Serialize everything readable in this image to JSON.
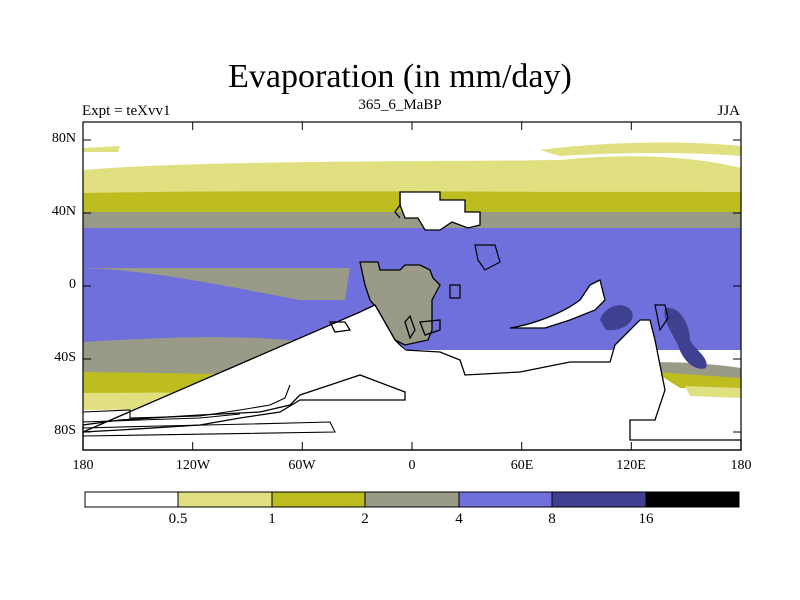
{
  "title": "Evaporation (in mm/day)",
  "subtitle_left": "Expt = teXvv1",
  "subtitle_center": "365_6_MaBP",
  "subtitle_right": "JJA",
  "lat_ticks": [
    "80N",
    "40N",
    "0",
    "40S",
    "80S"
  ],
  "lon_ticks": [
    "180",
    "120W",
    "60W",
    "0",
    "60E",
    "120E",
    "180"
  ],
  "colorbar": {
    "labels": [
      "0.5",
      "1",
      "2",
      "4",
      "8",
      "16"
    ],
    "colors": [
      "#ffffff",
      "#e0e080",
      "#bdbd20",
      "#9a9a88",
      "#7070dd",
      "#404090",
      "#000000"
    ]
  },
  "colors": {
    "ocean_low": "#e0e080",
    "ocean_mid": "#bdbd20",
    "ocean_grey": "#9a9a88",
    "ocean_blue": "#7070dd",
    "ocean_dark": "#404090",
    "land_outline": "#000000"
  }
}
